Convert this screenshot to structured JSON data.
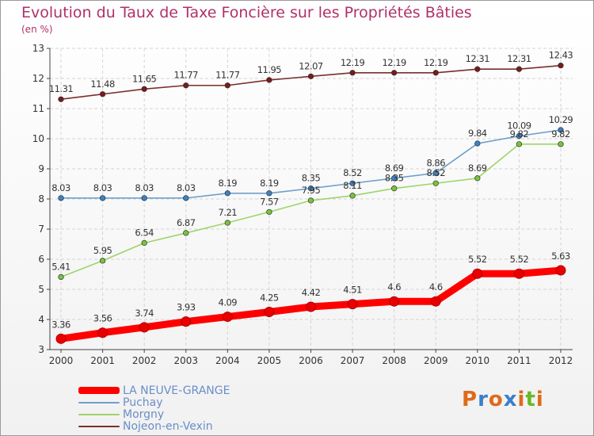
{
  "header": {
    "title": "Evolution du Taux de Taxe Foncière sur les Propriétés Bâties",
    "unit": "(en %)"
  },
  "logo": {
    "text": "Proxiti",
    "colors": [
      "#e06a1a",
      "#3a7fc8",
      "#e06a1a",
      "#3a7fc8",
      "#e06a1a",
      "#68b828",
      "#e06a1a"
    ]
  },
  "chart_data": {
    "type": "line",
    "title": "Evolution du Taux de Taxe Foncière sur les Propriétés Bâties",
    "ylabel": "(en %)",
    "xlabel": "",
    "categories": [
      "2000",
      "2001",
      "2002",
      "2003",
      "2004",
      "2005",
      "2006",
      "2007",
      "2008",
      "2009",
      "2010",
      "2011",
      "2012"
    ],
    "ylim": [
      3,
      13
    ],
    "yticks": [
      "3",
      "4",
      "5",
      "6",
      "7",
      "8",
      "9",
      "10",
      "11",
      "12",
      "13"
    ],
    "grid": true,
    "legend_position": "bottom-left",
    "series": [
      {
        "name": "Nojeon-en-Vexin",
        "color": "#7a2e2e",
        "marker": "#7a1a1a",
        "emphasis": false,
        "values": [
          11.31,
          11.48,
          11.65,
          11.77,
          11.77,
          11.95,
          12.07,
          12.19,
          12.19,
          12.19,
          12.31,
          12.31,
          12.43
        ],
        "labels": [
          "11.31",
          "11.48",
          "11.65",
          "11.77",
          "11.77",
          "11.95",
          "12.07",
          "12.19",
          "12.19",
          "12.19",
          "12.31",
          "12.31",
          "12.43"
        ]
      },
      {
        "name": "Puchay",
        "color": "#6fa0cc",
        "marker": "#3a82c4",
        "emphasis": false,
        "values": [
          8.03,
          8.03,
          8.03,
          8.03,
          8.19,
          8.19,
          8.35,
          8.52,
          8.69,
          8.86,
          9.84,
          10.09,
          10.29
        ],
        "labels": [
          "8.03",
          "8.03",
          "8.03",
          "8.03",
          "8.19",
          "8.19",
          "8.35",
          "8.52",
          "8.69",
          "8.86",
          "9.84",
          "10.09",
          "10.29"
        ]
      },
      {
        "name": "Morgny",
        "color": "#9ed46a",
        "marker": "#78c43a",
        "emphasis": false,
        "values": [
          5.41,
          5.95,
          6.54,
          6.87,
          7.21,
          7.57,
          7.95,
          8.11,
          8.35,
          8.52,
          8.69,
          9.82,
          9.82
        ],
        "labels": [
          "5.41",
          "5.95",
          "6.54",
          "6.87",
          "7.21",
          "7.57",
          "7.95",
          "8.11",
          "8.35",
          "8.52",
          "8.69",
          "9.82",
          "9.82"
        ]
      },
      {
        "name": "LA NEUVE-GRANGE",
        "color": "#ff0000",
        "marker": "#e80000",
        "emphasis": true,
        "values": [
          3.36,
          3.56,
          3.74,
          3.93,
          4.09,
          4.25,
          4.42,
          4.51,
          4.6,
          4.6,
          5.52,
          5.52,
          5.63
        ],
        "labels": [
          "3.36",
          "3.56",
          "3.74",
          "3.93",
          "4.09",
          "4.25",
          "4.42",
          "4.51",
          "4.6",
          "4.6",
          "5.52",
          "5.52",
          "5.63"
        ]
      }
    ],
    "legend": [
      "LA NEUVE-GRANGE",
      "Puchay",
      "Morgny",
      "Nojeon-en-Vexin"
    ]
  }
}
